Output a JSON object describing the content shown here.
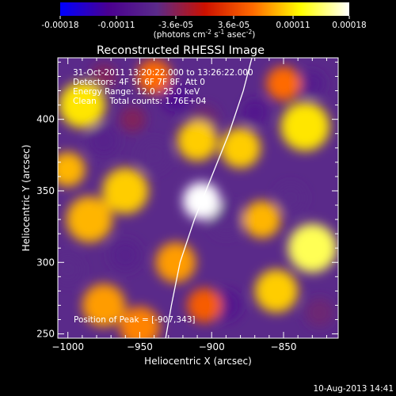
{
  "colorbar": {
    "ticks": [
      "-0.00018",
      "-0.00011",
      "-3.6e-05",
      "3.6e-05",
      "0.00011",
      "0.00018"
    ],
    "tick_values": [
      -0.00018,
      -0.00011,
      -3.6e-05,
      3.6e-05,
      0.00011,
      0.00018
    ],
    "range": [
      -0.00018,
      0.00018
    ],
    "units": {
      "main": "(photons cm",
      "exp1": "-2",
      "mid": " s",
      "exp2": "-1",
      "mid2": " asec",
      "exp3": "-2",
      "end": ")"
    },
    "colors": [
      "#0000ff",
      "#4a0090",
      "#5a2a8a",
      "#cc1000",
      "#ff6a00",
      "#ffff00",
      "#ffffff"
    ]
  },
  "chart_data": {
    "type": "heatmap",
    "title": "Reconstructed RHESSI Image",
    "xlabel": "Heliocentric X (arcsec)",
    "ylabel": "Heliocentric Y (arcsec)",
    "xlim": [
      -1007,
      -812
    ],
    "ylim": [
      247,
      443
    ],
    "x_ticks": [
      -1000,
      -950,
      -900,
      -850
    ],
    "y_ticks": [
      250,
      300,
      350,
      400
    ],
    "info": {
      "time": "31-Oct-2011 13:20:22.000 to 13:26:22.000",
      "detectors": "Detectors: 4F 5F 6F 7F 8F, Att 0",
      "energy": "Energy Range: 12.0 - 25.0 keV",
      "clean": "Clean     Total counts: 1.76E+04"
    },
    "peak_label": "Position of Peak = [-907,343]",
    "peak": [
      -907,
      343
    ],
    "limb_curve": [
      [
        -932,
        247
      ],
      [
        -928,
        270
      ],
      [
        -922,
        300
      ],
      [
        -912,
        330
      ],
      [
        -900,
        360
      ],
      [
        -888,
        390
      ],
      [
        -878,
        420
      ],
      [
        -872,
        443
      ]
    ],
    "blobs": [
      {
        "x": -907,
        "y": 343,
        "v": 0.00018,
        "r": 13
      },
      {
        "x": -990,
        "y": 410,
        "v": 0.00011,
        "r": 16
      },
      {
        "x": -985,
        "y": 330,
        "v": 9e-05,
        "r": 16
      },
      {
        "x": -960,
        "y": 350,
        "v": 0.0001,
        "r": 16
      },
      {
        "x": -925,
        "y": 300,
        "v": 8e-05,
        "r": 14
      },
      {
        "x": -910,
        "y": 385,
        "v": 0.0001,
        "r": 14
      },
      {
        "x": -880,
        "y": 380,
        "v": 0.0001,
        "r": 14
      },
      {
        "x": -835,
        "y": 395,
        "v": 0.00011,
        "r": 17
      },
      {
        "x": -830,
        "y": 310,
        "v": 0.00014,
        "r": 17
      },
      {
        "x": -855,
        "y": 280,
        "v": 0.0001,
        "r": 15
      },
      {
        "x": -865,
        "y": 330,
        "v": 9e-05,
        "r": 13
      },
      {
        "x": -975,
        "y": 270,
        "v": 8e-05,
        "r": 15
      },
      {
        "x": -950,
        "y": 255,
        "v": 7e-05,
        "r": 14
      },
      {
        "x": -1000,
        "y": 365,
        "v": 9e-05,
        "r": 12
      },
      {
        "x": -940,
        "y": 430,
        "v": 6e-05,
        "r": 12
      },
      {
        "x": -905,
        "y": 270,
        "v": 5e-05,
        "r": 12
      },
      {
        "x": -850,
        "y": 425,
        "v": 6e-05,
        "r": 12
      },
      {
        "x": -925,
        "y": 415,
        "v": -0.00011,
        "r": 10
      },
      {
        "x": -870,
        "y": 405,
        "v": -9e-05,
        "r": 9
      },
      {
        "x": -830,
        "y": 425,
        "v": -8e-05,
        "r": 9
      },
      {
        "x": -975,
        "y": 385,
        "v": -7e-05,
        "r": 11
      },
      {
        "x": -890,
        "y": 330,
        "v": -6e-05,
        "r": 12
      },
      {
        "x": -940,
        "y": 375,
        "v": -6e-05,
        "r": 11
      },
      {
        "x": -890,
        "y": 270,
        "v": -9e-05,
        "r": 11
      },
      {
        "x": -960,
        "y": 305,
        "v": -7e-05,
        "r": 11
      },
      {
        "x": -845,
        "y": 345,
        "v": -6e-05,
        "r": 10
      },
      {
        "x": -905,
        "y": 400,
        "v": -5e-05,
        "r": 10
      },
      {
        "x": -1000,
        "y": 295,
        "v": -6e-05,
        "r": 10
      },
      {
        "x": -975,
        "y": 430,
        "v": -4e-05,
        "r": 9
      },
      {
        "x": -825,
        "y": 265,
        "v": -5e-05,
        "r": 10
      },
      {
        "x": -955,
        "y": 400,
        "v": -4e-05,
        "r": 9
      }
    ]
  },
  "footer": {
    "date": "10-Aug-2013 14:41"
  }
}
